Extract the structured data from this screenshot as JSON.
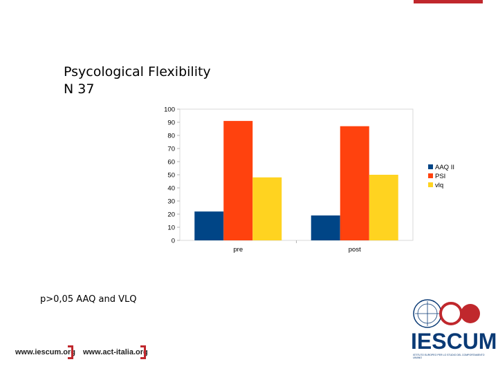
{
  "slide": {
    "title_line1": "Psycological Flexibility",
    "title_line2": "N 37",
    "note": "p>0,05 AAQ and VLQ"
  },
  "footer": {
    "url1": "www.iescum.org",
    "url2": "www.act-italia.org"
  },
  "logo": {
    "name": "IESCUM",
    "sub": "ISTITUTO EUROPEO PER LO STUDIO DEL COMPORTAMENTO UMANO"
  },
  "colors": {
    "accent": "#c0282d",
    "logo_blue": "#0a3a75"
  },
  "chart_data": {
    "type": "bar",
    "categories": [
      "pre",
      "post"
    ],
    "series": [
      {
        "name": "AAQ II",
        "values": [
          22,
          19
        ],
        "color": "#004586"
      },
      {
        "name": "PSI",
        "values": [
          91,
          87
        ],
        "color": "#ff420e"
      },
      {
        "name": "vlq",
        "values": [
          48,
          50
        ],
        "color": "#ffd320"
      }
    ],
    "ylim": [
      0,
      100
    ],
    "yticks": [
      0,
      10,
      20,
      30,
      40,
      50,
      60,
      70,
      80,
      90,
      100
    ],
    "grid": false,
    "legend": "right"
  }
}
